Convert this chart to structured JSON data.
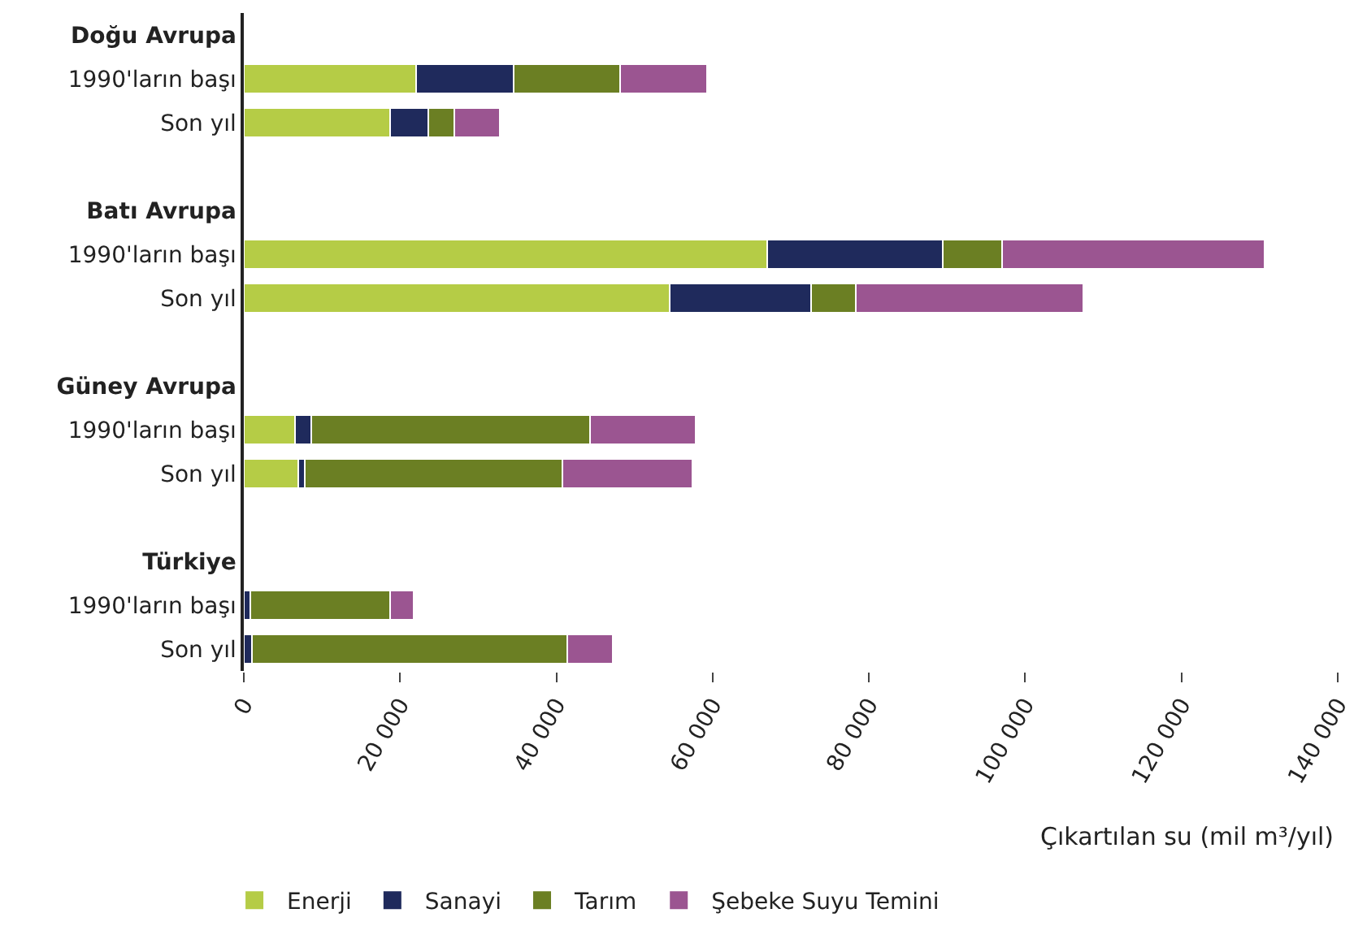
{
  "chart_data": {
    "type": "bar",
    "orientation": "horizontal",
    "stacked": true,
    "categories": [
      "Doğu Avrupa",
      "1990'ların başı",
      "Son yıl",
      null,
      "Batı Avrupa",
      "1990'ların başı",
      "Son yıl",
      null,
      "Güney Avrupa",
      "1990'ların başı",
      "Son yıl",
      null,
      "Türkiye",
      "1990'ların başı",
      "Son yıl"
    ],
    "series": [
      {
        "name": "Enerji",
        "color": "#b5cc46",
        "values": [
          null,
          22000,
          18700,
          null,
          null,
          67000,
          54500,
          null,
          null,
          6600,
          7000,
          null,
          null,
          0,
          0
        ]
      },
      {
        "name": "Sanayi",
        "color": "#1f2a5c",
        "values": [
          null,
          12500,
          4900,
          null,
          null,
          22400,
          18100,
          null,
          null,
          2000,
          800,
          null,
          null,
          800,
          1000
        ]
      },
      {
        "name": "Tarım",
        "color": "#6b7f23",
        "values": [
          null,
          13700,
          3300,
          null,
          null,
          7600,
          5700,
          null,
          null,
          35700,
          33000,
          null,
          null,
          17900,
          40400
        ]
      },
      {
        "name": "Şebeke Suyu Temini",
        "color": "#9b5591",
        "values": [
          null,
          11100,
          5900,
          null,
          null,
          33600,
          29100,
          null,
          null,
          13500,
          16600,
          null,
          null,
          3000,
          5800
        ]
      }
    ],
    "xlabel": "Çıkartılan su (mil m³/yıl)",
    "xlim": [
      0,
      140000
    ],
    "xticks": [
      0,
      {
        "value": 20000,
        "label": "20 000"
      },
      {
        "value": 40000,
        "label": "40 000"
      },
      {
        "value": 60000,
        "label": "60 000"
      },
      {
        "value": 80000,
        "label": "80 000"
      },
      {
        "value": 100000,
        "label": "100 000"
      },
      {
        "value": 120000,
        "label": "120 000"
      },
      {
        "value": 140000,
        "label": "140 000"
      }
    ],
    "legend": "bottom"
  }
}
